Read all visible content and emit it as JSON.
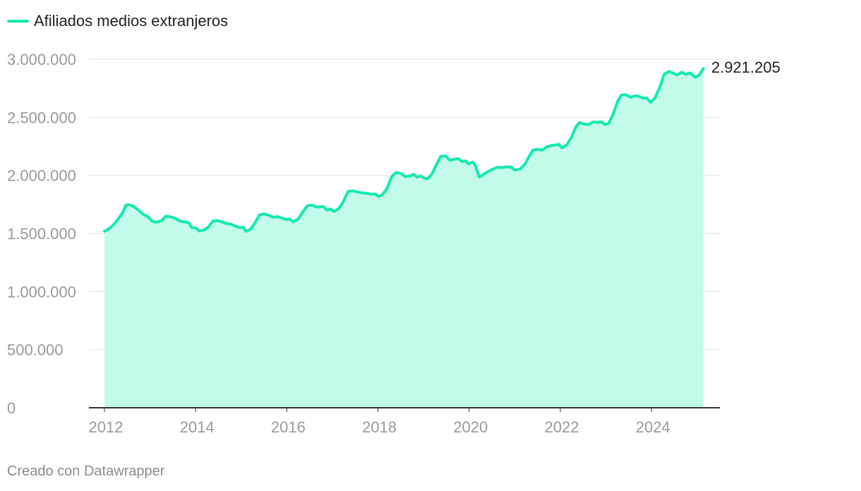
{
  "legend": {
    "label": "Afiliados medios extranjeros",
    "color": "#13eab0"
  },
  "footer": {
    "credit": "Creado con Datawrapper"
  },
  "chart_data": {
    "type": "area",
    "title": "",
    "xlabel": "",
    "ylabel": "",
    "xlim": [
      2012,
      2025.3
    ],
    "ylim": [
      0,
      3000000
    ],
    "y_ticks": [
      0,
      500000,
      1000000,
      1500000,
      2000000,
      2500000,
      3000000
    ],
    "y_tick_labels": [
      "0",
      "500.000",
      "1.000.000",
      "1.500.000",
      "2.000.000",
      "2.500.000",
      "3.000.000"
    ],
    "x_ticks": [
      2012,
      2014,
      2016,
      2018,
      2020,
      2022,
      2024
    ],
    "x_tick_labels": [
      "2012",
      "2014",
      "2016",
      "2018",
      "2020",
      "2022",
      "2024"
    ],
    "grid": true,
    "legend_position": "top-left",
    "line_color": "#13eab0",
    "fill_color": "#c3fbea",
    "end_label": "2.921.205",
    "series": [
      {
        "name": "Afiliados medios extranjeros",
        "points": [
          [
            2012.0,
            1520000
          ],
          [
            2012.1,
            1540000
          ],
          [
            2012.2,
            1575000
          ],
          [
            2012.3,
            1625000
          ],
          [
            2012.4,
            1680000
          ],
          [
            2012.47,
            1745000
          ],
          [
            2012.55,
            1748000
          ],
          [
            2012.65,
            1730000
          ],
          [
            2012.75,
            1700000
          ],
          [
            2012.85,
            1665000
          ],
          [
            2012.95,
            1645000
          ],
          [
            2013.05,
            1605000
          ],
          [
            2013.15,
            1597000
          ],
          [
            2013.25,
            1610000
          ],
          [
            2013.35,
            1650000
          ],
          [
            2013.45,
            1643000
          ],
          [
            2013.55,
            1632000
          ],
          [
            2013.65,
            1608000
          ],
          [
            2013.75,
            1600000
          ],
          [
            2013.85,
            1593000
          ],
          [
            2013.92,
            1550000
          ],
          [
            2014.0,
            1548000
          ],
          [
            2014.08,
            1522000
          ],
          [
            2014.18,
            1530000
          ],
          [
            2014.28,
            1555000
          ],
          [
            2014.38,
            1608000
          ],
          [
            2014.48,
            1610000
          ],
          [
            2014.58,
            1600000
          ],
          [
            2014.68,
            1585000
          ],
          [
            2014.78,
            1580000
          ],
          [
            2014.88,
            1562000
          ],
          [
            2014.98,
            1550000
          ],
          [
            2015.04,
            1555000
          ],
          [
            2015.1,
            1520000
          ],
          [
            2015.2,
            1535000
          ],
          [
            2015.3,
            1590000
          ],
          [
            2015.4,
            1660000
          ],
          [
            2015.5,
            1668000
          ],
          [
            2015.6,
            1658000
          ],
          [
            2015.7,
            1640000
          ],
          [
            2015.8,
            1645000
          ],
          [
            2015.9,
            1632000
          ],
          [
            2016.0,
            1620000
          ],
          [
            2016.06,
            1625000
          ],
          [
            2016.14,
            1600000
          ],
          [
            2016.25,
            1625000
          ],
          [
            2016.35,
            1685000
          ],
          [
            2016.45,
            1738000
          ],
          [
            2016.55,
            1745000
          ],
          [
            2016.65,
            1728000
          ],
          [
            2016.75,
            1730000
          ],
          [
            2016.8,
            1732000
          ],
          [
            2016.88,
            1702000
          ],
          [
            2016.95,
            1712000
          ],
          [
            2017.04,
            1690000
          ],
          [
            2017.14,
            1715000
          ],
          [
            2017.24,
            1775000
          ],
          [
            2017.34,
            1860000
          ],
          [
            2017.44,
            1868000
          ],
          [
            2017.54,
            1858000
          ],
          [
            2017.64,
            1850000
          ],
          [
            2017.74,
            1848000
          ],
          [
            2017.84,
            1838000
          ],
          [
            2017.94,
            1840000
          ],
          [
            2018.02,
            1818000
          ],
          [
            2018.1,
            1835000
          ],
          [
            2018.2,
            1890000
          ],
          [
            2018.3,
            1990000
          ],
          [
            2018.4,
            2025000
          ],
          [
            2018.5,
            2018000
          ],
          [
            2018.6,
            1990000
          ],
          [
            2018.7,
            1995000
          ],
          [
            2018.78,
            2008000
          ],
          [
            2018.86,
            1985000
          ],
          [
            2018.94,
            1995000
          ],
          [
            2019.0,
            1980000
          ],
          [
            2019.08,
            1970000
          ],
          [
            2019.18,
            2010000
          ],
          [
            2019.28,
            2090000
          ],
          [
            2019.38,
            2165000
          ],
          [
            2019.48,
            2168000
          ],
          [
            2019.58,
            2130000
          ],
          [
            2019.68,
            2140000
          ],
          [
            2019.76,
            2145000
          ],
          [
            2019.84,
            2120000
          ],
          [
            2019.92,
            2125000
          ],
          [
            2019.98,
            2100000
          ],
          [
            2020.08,
            2115000
          ],
          [
            2020.14,
            2085000
          ],
          [
            2020.22,
            1985000
          ],
          [
            2020.3,
            2005000
          ],
          [
            2020.4,
            2030000
          ],
          [
            2020.5,
            2050000
          ],
          [
            2020.62,
            2070000
          ],
          [
            2020.72,
            2068000
          ],
          [
            2020.82,
            2073000
          ],
          [
            2020.92,
            2072000
          ],
          [
            2021.0,
            2045000
          ],
          [
            2021.12,
            2055000
          ],
          [
            2021.22,
            2095000
          ],
          [
            2021.32,
            2168000
          ],
          [
            2021.4,
            2218000
          ],
          [
            2021.5,
            2225000
          ],
          [
            2021.6,
            2218000
          ],
          [
            2021.7,
            2245000
          ],
          [
            2021.8,
            2258000
          ],
          [
            2021.9,
            2262000
          ],
          [
            2021.96,
            2268000
          ],
          [
            2022.04,
            2238000
          ],
          [
            2022.14,
            2262000
          ],
          [
            2022.24,
            2325000
          ],
          [
            2022.34,
            2418000
          ],
          [
            2022.42,
            2455000
          ],
          [
            2022.52,
            2442000
          ],
          [
            2022.62,
            2438000
          ],
          [
            2022.72,
            2460000
          ],
          [
            2022.82,
            2456000
          ],
          [
            2022.9,
            2462000
          ],
          [
            2022.98,
            2438000
          ],
          [
            2023.06,
            2448000
          ],
          [
            2023.16,
            2530000
          ],
          [
            2023.26,
            2640000
          ],
          [
            2023.34,
            2692000
          ],
          [
            2023.44,
            2695000
          ],
          [
            2023.54,
            2672000
          ],
          [
            2023.64,
            2685000
          ],
          [
            2023.72,
            2682000
          ],
          [
            2023.8,
            2668000
          ],
          [
            2023.9,
            2665000
          ],
          [
            2023.98,
            2630000
          ],
          [
            2024.08,
            2668000
          ],
          [
            2024.18,
            2760000
          ],
          [
            2024.28,
            2872000
          ],
          [
            2024.38,
            2895000
          ],
          [
            2024.48,
            2880000
          ],
          [
            2024.56,
            2865000
          ],
          [
            2024.66,
            2888000
          ],
          [
            2024.76,
            2870000
          ],
          [
            2024.84,
            2882000
          ],
          [
            2024.92,
            2860000
          ],
          [
            2024.96,
            2845000
          ],
          [
            2025.04,
            2862000
          ],
          [
            2025.14,
            2921205
          ]
        ]
      }
    ]
  }
}
